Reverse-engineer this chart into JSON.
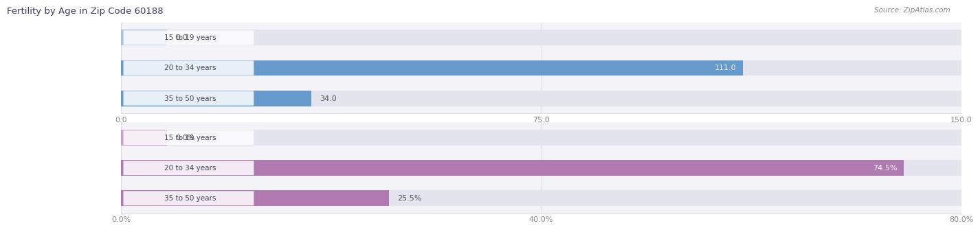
{
  "title": "Fertility by Age in Zip Code 60188",
  "source": "Source: ZipAtlas.com",
  "top_chart": {
    "categories": [
      "15 to 19 years",
      "20 to 34 years",
      "35 to 50 years"
    ],
    "values": [
      0.0,
      111.0,
      34.0
    ],
    "max_value": 150.0,
    "tick_values": [
      0.0,
      75.0,
      150.0
    ],
    "bar_color_full": "#6699cc",
    "bar_color_light": "#aac4e0",
    "label_color_inside": "#ffffff",
    "label_color_outside": "#555555"
  },
  "bottom_chart": {
    "categories": [
      "15 to 19 years",
      "20 to 34 years",
      "35 to 50 years"
    ],
    "values": [
      0.0,
      74.5,
      25.5
    ],
    "max_value": 80.0,
    "tick_values": [
      0.0,
      40.0,
      80.0
    ],
    "tick_labels": [
      "0.0%",
      "40.0%",
      "80.0%"
    ],
    "bar_color_full": "#b07ab0",
    "bar_color_light": "#c8a0c8",
    "label_color_inside": "#ffffff",
    "label_color_outside": "#555555"
  },
  "title_color": "#3a3a5c",
  "source_color": "#888888",
  "tick_color": "#888888",
  "bar_bg_color": "#e8e8ee",
  "bar_height": 0.52,
  "label_pill_color": "#f0f0f5"
}
